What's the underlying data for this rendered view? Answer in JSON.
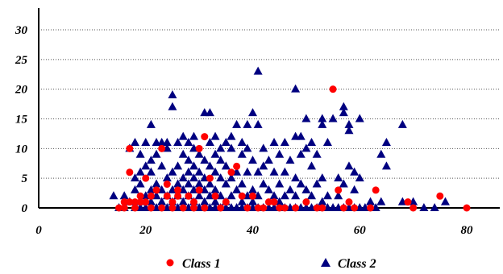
{
  "chart_data": {
    "type": "scatter",
    "title": "",
    "xlabel": "",
    "ylabel": "",
    "xlim": [
      0,
      87
    ],
    "ylim": [
      0,
      33
    ],
    "x_ticks": [
      "0",
      "20",
      "40",
      "60",
      "80"
    ],
    "y_ticks": [
      "0",
      "5",
      "10",
      "15",
      "20",
      "25",
      "30"
    ],
    "grid": "horizontal dotted",
    "legend_position": "bottom",
    "series": [
      {
        "name": "Class 1",
        "color": "#ff0000",
        "marker": "circle",
        "points": [
          [
            15,
            0
          ],
          [
            16,
            0
          ],
          [
            16,
            1
          ],
          [
            17,
            1
          ],
          [
            17,
            6
          ],
          [
            17,
            10
          ],
          [
            18,
            0
          ],
          [
            18,
            1
          ],
          [
            19,
            2
          ],
          [
            19,
            1
          ],
          [
            20,
            5
          ],
          [
            20,
            1
          ],
          [
            21,
            0
          ],
          [
            21,
            2
          ],
          [
            22,
            3
          ],
          [
            23,
            10
          ],
          [
            23,
            0
          ],
          [
            24,
            4
          ],
          [
            24,
            2
          ],
          [
            25,
            1
          ],
          [
            25,
            0
          ],
          [
            26,
            2
          ],
          [
            26,
            3
          ],
          [
            27,
            0
          ],
          [
            28,
            2
          ],
          [
            29,
            0
          ],
          [
            29,
            1
          ],
          [
            30,
            10
          ],
          [
            30,
            3
          ],
          [
            31,
            12
          ],
          [
            31,
            0
          ],
          [
            32,
            5
          ],
          [
            33,
            2
          ],
          [
            34,
            0
          ],
          [
            35,
            1
          ],
          [
            36,
            6
          ],
          [
            37,
            7
          ],
          [
            38,
            2
          ],
          [
            39,
            0
          ],
          [
            40,
            2
          ],
          [
            41,
            0
          ],
          [
            42,
            0
          ],
          [
            43,
            1
          ],
          [
            44,
            1
          ],
          [
            45,
            0
          ],
          [
            46,
            0
          ],
          [
            48,
            0
          ],
          [
            50,
            1
          ],
          [
            52,
            0
          ],
          [
            53,
            0
          ],
          [
            55,
            20
          ],
          [
            56,
            3
          ],
          [
            57,
            0
          ],
          [
            58,
            1
          ],
          [
            59,
            0
          ],
          [
            62,
            0
          ],
          [
            63,
            3
          ],
          [
            69,
            1
          ],
          [
            70,
            0
          ],
          [
            75,
            2
          ],
          [
            80,
            0
          ]
        ]
      },
      {
        "name": "Class 2",
        "color": "#000080",
        "marker": "triangle",
        "points": [
          [
            14,
            2
          ],
          [
            15,
            0
          ],
          [
            16,
            0
          ],
          [
            16,
            2
          ],
          [
            17,
            1
          ],
          [
            17,
            10
          ],
          [
            18,
            0
          ],
          [
            18,
            3
          ],
          [
            18,
            5
          ],
          [
            18,
            11
          ],
          [
            19,
            0
          ],
          [
            19,
            1
          ],
          [
            19,
            4
          ],
          [
            19,
            6
          ],
          [
            19,
            9
          ],
          [
            20,
            0
          ],
          [
            20,
            2
          ],
          [
            20,
            7
          ],
          [
            20,
            11
          ],
          [
            21,
            0
          ],
          [
            21,
            1
          ],
          [
            21,
            3
          ],
          [
            21,
            6
          ],
          [
            21,
            8
          ],
          [
            21,
            14
          ],
          [
            22,
            0
          ],
          [
            22,
            2
          ],
          [
            22,
            4
          ],
          [
            22,
            9
          ],
          [
            22,
            11
          ],
          [
            23,
            0
          ],
          [
            23,
            1
          ],
          [
            23,
            3
          ],
          [
            23,
            7
          ],
          [
            23,
            11
          ],
          [
            24,
            0
          ],
          [
            24,
            2
          ],
          [
            24,
            5
          ],
          [
            24,
            10
          ],
          [
            24,
            11
          ],
          [
            25,
            0
          ],
          [
            25,
            1
          ],
          [
            25,
            3
          ],
          [
            25,
            6
          ],
          [
            25,
            17
          ],
          [
            25,
            19
          ],
          [
            26,
            0
          ],
          [
            26,
            2
          ],
          [
            26,
            4
          ],
          [
            26,
            7
          ],
          [
            26,
            11
          ],
          [
            27,
            0
          ],
          [
            27,
            1
          ],
          [
            27,
            3
          ],
          [
            27,
            5
          ],
          [
            27,
            9
          ],
          [
            27,
            12
          ],
          [
            28,
            0
          ],
          [
            28,
            2
          ],
          [
            28,
            4
          ],
          [
            28,
            6
          ],
          [
            28,
            8
          ],
          [
            28,
            11
          ],
          [
            29,
            0
          ],
          [
            29,
            1
          ],
          [
            29,
            3
          ],
          [
            29,
            5
          ],
          [
            29,
            7
          ],
          [
            29,
            10
          ],
          [
            29,
            12
          ],
          [
            30,
            0
          ],
          [
            30,
            2
          ],
          [
            30,
            4
          ],
          [
            30,
            6
          ],
          [
            30,
            9
          ],
          [
            31,
            0
          ],
          [
            31,
            1
          ],
          [
            31,
            3
          ],
          [
            31,
            5
          ],
          [
            31,
            8
          ],
          [
            31,
            16
          ],
          [
            32,
            0
          ],
          [
            32,
            2
          ],
          [
            32,
            4
          ],
          [
            32,
            7
          ],
          [
            32,
            11
          ],
          [
            32,
            16
          ],
          [
            33,
            0
          ],
          [
            33,
            1
          ],
          [
            33,
            3
          ],
          [
            33,
            6
          ],
          [
            33,
            9
          ],
          [
            33,
            12
          ],
          [
            34,
            0
          ],
          [
            34,
            2
          ],
          [
            34,
            5
          ],
          [
            34,
            8
          ],
          [
            34,
            10
          ],
          [
            35,
            0
          ],
          [
            35,
            1
          ],
          [
            35,
            4
          ],
          [
            35,
            7
          ],
          [
            35,
            11
          ],
          [
            36,
            0
          ],
          [
            36,
            2
          ],
          [
            36,
            5
          ],
          [
            36,
            10
          ],
          [
            36,
            12
          ],
          [
            37,
            0
          ],
          [
            37,
            3
          ],
          [
            37,
            6
          ],
          [
            37,
            14
          ],
          [
            38,
            0
          ],
          [
            38,
            1
          ],
          [
            38,
            4
          ],
          [
            38,
            9
          ],
          [
            38,
            11
          ],
          [
            39,
            0
          ],
          [
            39,
            2
          ],
          [
            39,
            6
          ],
          [
            39,
            10
          ],
          [
            39,
            14
          ],
          [
            40,
            0
          ],
          [
            40,
            1
          ],
          [
            40,
            3
          ],
          [
            40,
            8
          ],
          [
            40,
            16
          ],
          [
            41,
            0
          ],
          [
            41,
            2
          ],
          [
            41,
            6
          ],
          [
            41,
            14
          ],
          [
            41,
            23
          ],
          [
            42,
            0
          ],
          [
            42,
            4
          ],
          [
            42,
            7
          ],
          [
            42,
            10
          ],
          [
            43,
            0
          ],
          [
            43,
            3
          ],
          [
            43,
            8
          ],
          [
            44,
            0
          ],
          [
            44,
            2
          ],
          [
            44,
            6
          ],
          [
            44,
            11
          ],
          [
            45,
            0
          ],
          [
            45,
            1
          ],
          [
            45,
            4
          ],
          [
            45,
            9
          ],
          [
            46,
            0
          ],
          [
            46,
            2
          ],
          [
            46,
            6
          ],
          [
            46,
            11
          ],
          [
            47,
            0
          ],
          [
            47,
            3
          ],
          [
            47,
            8
          ],
          [
            48,
            0
          ],
          [
            48,
            2
          ],
          [
            48,
            5
          ],
          [
            48,
            12
          ],
          [
            48,
            20
          ],
          [
            49,
            0
          ],
          [
            49,
            4
          ],
          [
            49,
            9
          ],
          [
            49,
            12
          ],
          [
            50,
            0
          ],
          [
            50,
            3
          ],
          [
            50,
            10
          ],
          [
            50,
            15
          ],
          [
            51,
            0
          ],
          [
            51,
            2
          ],
          [
            51,
            7
          ],
          [
            51,
            11
          ],
          [
            52,
            0
          ],
          [
            52,
            4
          ],
          [
            52,
            9
          ],
          [
            53,
            0
          ],
          [
            53,
            1
          ],
          [
            53,
            5
          ],
          [
            53,
            14
          ],
          [
            53,
            15
          ],
          [
            54,
            0
          ],
          [
            54,
            2
          ],
          [
            54,
            11
          ],
          [
            55,
            0
          ],
          [
            55,
            15
          ],
          [
            56,
            0
          ],
          [
            56,
            2
          ],
          [
            56,
            5
          ],
          [
            57,
            0
          ],
          [
            57,
            4
          ],
          [
            57,
            16
          ],
          [
            57,
            17
          ],
          [
            58,
            0
          ],
          [
            58,
            7
          ],
          [
            58,
            13
          ],
          [
            58,
            14
          ],
          [
            59,
            0
          ],
          [
            59,
            3
          ],
          [
            59,
            6
          ],
          [
            60,
            0
          ],
          [
            60,
            5
          ],
          [
            60,
            15
          ],
          [
            61,
            0
          ],
          [
            62,
            0
          ],
          [
            62,
            1
          ],
          [
            63,
            0
          ],
          [
            64,
            1
          ],
          [
            64,
            9
          ],
          [
            65,
            11
          ],
          [
            65,
            7
          ],
          [
            68,
            1
          ],
          [
            68,
            14
          ],
          [
            70,
            1
          ],
          [
            72,
            0
          ],
          [
            74,
            0
          ],
          [
            76,
            1
          ]
        ]
      }
    ]
  }
}
